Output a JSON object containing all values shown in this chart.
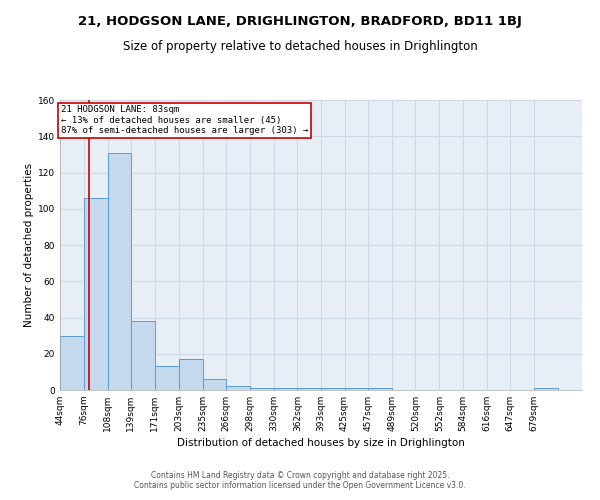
{
  "title1": "21, HODGSON LANE, DRIGHLINGTON, BRADFORD, BD11 1BJ",
  "title2": "Size of property relative to detached houses in Drighlington",
  "xlabel": "Distribution of detached houses by size in Drighlington",
  "ylabel": "Number of detached properties",
  "bar_edges": [
    44,
    76,
    108,
    139,
    171,
    203,
    235,
    266,
    298,
    330,
    362,
    393,
    425,
    457,
    489,
    520,
    552,
    584,
    616,
    647,
    679,
    711
  ],
  "bar_heights": [
    30,
    106,
    131,
    38,
    13,
    17,
    6,
    2,
    1,
    1,
    1,
    1,
    1,
    1,
    0,
    0,
    0,
    0,
    0,
    0,
    1
  ],
  "bar_color": "#c5d9ee",
  "bar_edge_color": "#5b9bd5",
  "red_line_x": 83,
  "red_line_color": "#cc0000",
  "annotation_text": "21 HODGSON LANE: 83sqm\n← 13% of detached houses are smaller (45)\n87% of semi-detached houses are larger (303) →",
  "annotation_box_color": "#cc0000",
  "ylim": [
    0,
    160
  ],
  "yticks": [
    0,
    20,
    40,
    60,
    80,
    100,
    120,
    140,
    160
  ],
  "tick_labels": [
    "44sqm",
    "76sqm",
    "108sqm",
    "139sqm",
    "171sqm",
    "203sqm",
    "235sqm",
    "266sqm",
    "298sqm",
    "330sqm",
    "362sqm",
    "393sqm",
    "425sqm",
    "457sqm",
    "489sqm",
    "520sqm",
    "552sqm",
    "584sqm",
    "616sqm",
    "647sqm",
    "679sqm"
  ],
  "bg_color": "#e8eef6",
  "grid_color": "#c8d4e4",
  "footer_text": "Contains HM Land Registry data © Crown copyright and database right 2025.\nContains public sector information licensed under the Open Government Licence v3.0.",
  "title_fontsize": 9.5,
  "subtitle_fontsize": 8.5,
  "axis_label_fontsize": 7.5,
  "tick_fontsize": 6.5,
  "footer_fontsize": 5.5
}
